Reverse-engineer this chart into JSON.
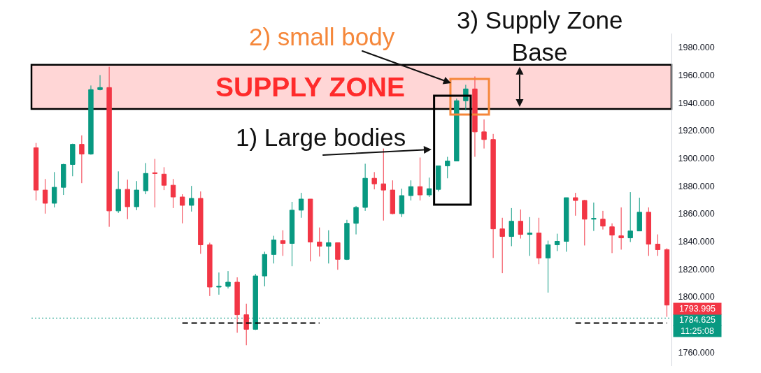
{
  "chart_data": {
    "type": "candlestick",
    "categories": [
      null,
      null,
      null,
      null,
      null,
      null,
      null,
      null,
      null,
      null,
      null,
      null,
      null,
      null,
      null,
      null,
      null,
      null,
      null,
      null,
      null,
      null,
      null,
      null,
      null,
      null,
      null,
      null,
      null,
      null,
      null,
      null,
      null,
      null,
      null,
      null,
      null,
      null,
      null,
      null,
      null,
      null,
      null,
      null,
      null,
      null,
      null,
      null,
      null,
      null,
      null,
      null,
      null,
      null,
      null,
      null,
      null,
      null,
      null,
      null,
      null,
      null,
      null,
      null,
      null,
      null,
      null,
      null,
      null,
      null
    ],
    "ohlc": [
      [
        1907.5,
        1911,
        1869.5,
        1877
      ],
      [
        1877,
        1885,
        1860,
        1867.5
      ],
      [
        1867.5,
        1890,
        1864.5,
        1879
      ],
      [
        1879,
        1896,
        1873.5,
        1895.5
      ],
      [
        1895.5,
        1910.5,
        1887,
        1910
      ],
      [
        1910,
        1916.5,
        1882,
        1903
      ],
      [
        1903,
        1952.5,
        1902.5,
        1949.5
      ],
      [
        1949.5,
        1960,
        1949,
        1951
      ],
      [
        1951,
        1966,
        1850.5,
        1862
      ],
      [
        1862,
        1890.5,
        1860.5,
        1877.5
      ],
      [
        1877.5,
        1884.5,
        1856,
        1865
      ],
      [
        1865,
        1883.5,
        1862.5,
        1877
      ],
      [
        1876.5,
        1896.5,
        1874,
        1889
      ],
      [
        1889.5,
        1899.5,
        1864.5,
        1889
      ],
      [
        1888.5,
        1893.5,
        1877,
        1880.5
      ],
      [
        1880.5,
        1885,
        1864,
        1872
      ],
      [
        1872,
        1874,
        1853,
        1866
      ],
      [
        1866,
        1880,
        1861.5,
        1871
      ],
      [
        1871,
        1876,
        1831,
        1837.5
      ],
      [
        1837.5,
        1839,
        1800.5,
        1807
      ],
      [
        1807,
        1817.5,
        1801.5,
        1807.5
      ],
      [
        1807.5,
        1818.5,
        1806,
        1810.5
      ],
      [
        1810.5,
        1814,
        1774,
        1787
      ],
      [
        1787,
        1795,
        1765,
        1776.5
      ],
      [
        1776.5,
        1816.5,
        1776,
        1815
      ],
      [
        1815,
        1832.5,
        1807.5,
        1830.5
      ],
      [
        1830.5,
        1844,
        1824,
        1841
      ],
      [
        1840.5,
        1848,
        1829.5,
        1838.5
      ],
      [
        1838.5,
        1868.5,
        1822,
        1862.5
      ],
      [
        1862.5,
        1875,
        1857,
        1870.5
      ],
      [
        1870.5,
        1870.5,
        1825.5,
        1839.5
      ],
      [
        1839.5,
        1850,
        1829,
        1836.5
      ],
      [
        1836.5,
        1848,
        1824,
        1839
      ],
      [
        1839,
        1839,
        1819.5,
        1827
      ],
      [
        1827,
        1855.5,
        1826.5,
        1853
      ],
      [
        1853,
        1865.5,
        1845,
        1864.5
      ],
      [
        1864.5,
        1896,
        1862,
        1885.5
      ],
      [
        1885.5,
        1890,
        1877.5,
        1881.5
      ],
      [
        1881.5,
        1907,
        1855,
        1877
      ],
      [
        1877,
        1884,
        1859.5,
        1860
      ],
      [
        1860,
        1878,
        1857.5,
        1873
      ],
      [
        1873,
        1884,
        1869.5,
        1879.5
      ],
      [
        1879.5,
        1900.5,
        1869.5,
        1873.5
      ],
      [
        1873.5,
        1886,
        1872,
        1878
      ],
      [
        1877.5,
        1894.5,
        1876,
        1894.5
      ],
      [
        1894.5,
        1901,
        1885.5,
        1898
      ],
      [
        1898,
        1943,
        1898,
        1941.5
      ],
      [
        1941.5,
        1953,
        1934.5,
        1950
      ],
      [
        1950,
        1959,
        1901,
        1919
      ],
      [
        1919,
        1928,
        1907,
        1913.5
      ],
      [
        1913.5,
        1917.5,
        1828,
        1849
      ],
      [
        1849,
        1857,
        1817,
        1843.5
      ],
      [
        1843.5,
        1864,
        1836.5,
        1854.5
      ],
      [
        1854.5,
        1863,
        1842,
        1845
      ],
      [
        1845,
        1857.5,
        1829.5,
        1846
      ],
      [
        1846,
        1857,
        1823.5,
        1828
      ],
      [
        1828,
        1840.5,
        1803,
        1837.5
      ],
      [
        1837.5,
        1845.5,
        1833,
        1840
      ],
      [
        1840,
        1871.5,
        1832.5,
        1871.5
      ],
      [
        1871.5,
        1875,
        1858.5,
        1869.5
      ],
      [
        1869.5,
        1870,
        1837,
        1856
      ],
      [
        1856,
        1868,
        1847.5,
        1856.5
      ],
      [
        1856,
        1862,
        1848.5,
        1851
      ],
      [
        1850.5,
        1853,
        1831.5,
        1844.5
      ],
      [
        1844,
        1864.5,
        1834,
        1842.5
      ],
      [
        1842.5,
        1875.5,
        1839.5,
        1847.5
      ],
      [
        1847.5,
        1871.5,
        1847.5,
        1861
      ],
      [
        1861,
        1864.5,
        1829.5,
        1838
      ],
      [
        1838,
        1845,
        1829.5,
        1834
      ],
      [
        1834,
        1835,
        1785.5,
        1793.995
      ]
    ],
    "colors": [
      "#f23645",
      "#f23645",
      "#089981",
      "#089981",
      "#089981",
      "#f23645",
      "#089981",
      "#089981",
      "#f23645",
      "#089981",
      "#f23645",
      "#089981",
      "#089981",
      "#f23645",
      "#f23645",
      "#f23645",
      "#f23645",
      "#089981",
      "#f23645",
      "#f23645",
      "#089981",
      "#089981",
      "#f23645",
      "#f23645",
      "#089981",
      "#089981",
      "#089981",
      "#f23645",
      "#089981",
      "#089981",
      "#f23645",
      "#f23645",
      "#089981",
      "#f23645",
      "#089981",
      "#089981",
      "#089981",
      "#f23645",
      "#f23645",
      "#f23645",
      "#089981",
      "#089981",
      "#f23645",
      "#089981",
      "#089981",
      "#089981",
      "#089981",
      "#089981",
      "#f23645",
      "#f23645",
      "#f23645",
      "#f23645",
      "#089981",
      "#f23645",
      "#089981",
      "#f23645",
      "#089981",
      "#089981",
      "#089981",
      "#f23645",
      "#f23645",
      "#089981",
      "#f23645",
      "#f23645",
      "#f23645",
      "#089981",
      "#089981",
      "#f23645",
      "#f23645",
      "#f23645"
    ],
    "series": [
      {
        "type": "line",
        "color": "#000000",
        "values": [
          null,
          null,
          null,
          null,
          null,
          null,
          null,
          null,
          null,
          null,
          null,
          null,
          null,
          null,
          null,
          null,
          1781,
          1781,
          1781,
          1781,
          1781,
          1781,
          1781,
          1781,
          1781,
          1781,
          1781,
          1781,
          1781,
          1781,
          1781,
          1781,
          null,
          null,
          null,
          null,
          null,
          null,
          null,
          null,
          null,
          null,
          null,
          null,
          null,
          null,
          null,
          null,
          null,
          null,
          null,
          null,
          null,
          null,
          null,
          null,
          null,
          null,
          null,
          null,
          null,
          null,
          null,
          null,
          null,
          null,
          null,
          null,
          null,
          null
        ]
      },
      {
        "type": "line",
        "color": "#000000",
        "values": [
          null,
          null,
          null,
          null,
          null,
          null,
          null,
          null,
          null,
          null,
          null,
          null,
          null,
          null,
          null,
          null,
          null,
          null,
          null,
          null,
          null,
          null,
          null,
          null,
          null,
          null,
          null,
          null,
          null,
          null,
          null,
          null,
          null,
          null,
          null,
          null,
          null,
          null,
          null,
          null,
          null,
          null,
          null,
          null,
          null,
          null,
          null,
          null,
          null,
          null,
          null,
          null,
          null,
          null,
          null,
          null,
          null,
          null,
          null,
          1781,
          1781,
          1781,
          1781,
          1781,
          1781,
          1781,
          1781,
          1781,
          1781,
          1781
        ]
      }
    ],
    "line_style": "dashed",
    "ylim": [
      1750,
      1990
    ],
    "yticks": [
      {
        "value": 1760,
        "label": "1760.000"
      },
      {
        "value": 1800,
        "label": "1800.000"
      },
      {
        "value": 1820,
        "label": "1820.000"
      },
      {
        "value": 1840,
        "label": "1840.000"
      },
      {
        "value": 1860,
        "label": "1860.000"
      },
      {
        "value": 1880,
        "label": "1880.000"
      },
      {
        "value": 1900,
        "label": "1900.000"
      },
      {
        "value": 1920,
        "label": "1920.000"
      },
      {
        "value": 1940,
        "label": "1940.000"
      },
      {
        "value": 1960,
        "label": "1960.000"
      },
      {
        "value": 1980,
        "label": "1980.000"
      }
    ],
    "tick_labels": "y",
    "grid": false,
    "bands": [
      {
        "axis": "y",
        "from": 1935.5,
        "to": 1967.5,
        "label": "SUPPLY ZONE",
        "color": "#ffd6d6"
      }
    ],
    "ref_lines": [
      {
        "axis": "y",
        "value": 1784.625,
        "label": "1784.625",
        "color": "#089981",
        "line_style": "dotted"
      }
    ],
    "annotations": [
      "2) small body",
      "3) Supply Zone\nBase",
      "1) Large bodies",
      "1793.995",
      "11:25:08"
    ]
  }
}
